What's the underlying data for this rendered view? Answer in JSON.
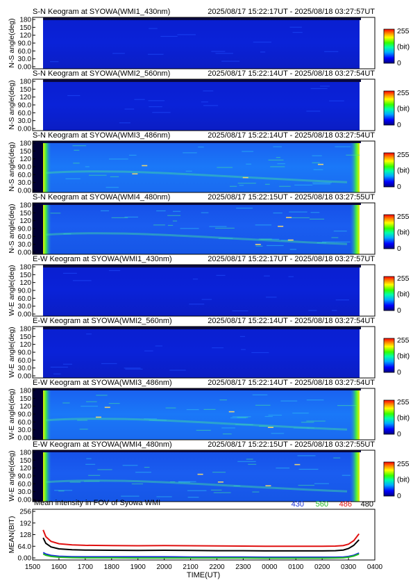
{
  "keograms": [
    {
      "title_left": "S-N Keogram at SYOWA(WMI1_430nm)",
      "title_right": "2025/08/17 15:22:17UT - 2025/08/18 03:27:57UT",
      "ylabel": "N-S angle(deg)",
      "ticks": [
        "180",
        "150",
        "120",
        "90.0",
        "60.0",
        "30.0",
        "0.00"
      ],
      "brightness": "faint",
      "edge": "none",
      "cbar_max": "255",
      "cbar_unit": "(bit)",
      "cbar_min": "0"
    },
    {
      "title_left": "S-N Keogram at SYOWA(WMI2_560nm)",
      "title_right": "2025/08/17 15:22:14UT - 2025/08/18 03:27:54UT",
      "ylabel": "N-S angle(deg)",
      "ticks": [
        "180",
        "150",
        "120",
        "90.0",
        "60.0",
        "30.0",
        "0.00"
      ],
      "brightness": "faint",
      "edge": "none",
      "cbar_max": "255",
      "cbar_unit": "(bit)",
      "cbar_min": "0"
    },
    {
      "title_left": "S-N Keogram at SYOWA(WMI3_486nm)",
      "title_right": "2025/08/17 15:22:14UT - 2025/08/18 03:27:54UT",
      "ylabel": "N-S angle(deg)",
      "ticks": [
        "180",
        "150",
        "120",
        "90.0",
        "60.0",
        "30.0",
        "0.00"
      ],
      "brightness": "bright",
      "edge": "strong",
      "cbar_max": "255",
      "cbar_unit": "(bit)",
      "cbar_min": "0"
    },
    {
      "title_left": "S-N Keogram at SYOWA(WMI4_480nm)",
      "title_right": "2025/08/17 15:22:15UT - 2025/08/18 03:27:55UT",
      "ylabel": "N-S angle(deg)",
      "ticks": [
        "180",
        "150",
        "120",
        "90.0",
        "60.0",
        "30.0",
        "0.00"
      ],
      "brightness": "medium",
      "edge": "strong",
      "cbar_max": "255",
      "cbar_unit": "(bit)",
      "cbar_min": "0"
    },
    {
      "title_left": "E-W Keogram at SYOWA(WMI1_430nm)",
      "title_right": "2025/08/17 15:22:17UT - 2025/08/18 03:27:57UT",
      "ylabel": "W-E angle(deg)",
      "ticks": [
        "180",
        "150",
        "120",
        "90.0",
        "60.0",
        "30.0",
        "0.00"
      ],
      "brightness": "faint",
      "edge": "none",
      "cbar_max": "255",
      "cbar_unit": "(bit)",
      "cbar_min": "0"
    },
    {
      "title_left": "E-W Keogram at SYOWA(WMI2_560nm)",
      "title_right": "2025/08/17 15:22:14UT - 2025/08/18 03:27:54UT",
      "ylabel": "W-E angle(deg)",
      "ticks": [
        "180",
        "150",
        "120",
        "90.0",
        "60.0",
        "30.0",
        "0.00"
      ],
      "brightness": "faint",
      "edge": "none",
      "cbar_max": "255",
      "cbar_unit": "(bit)",
      "cbar_min": "0"
    },
    {
      "title_left": "E-W Keogram at SYOWA(WMI3_486nm)",
      "title_right": "2025/08/17 15:22:14UT - 2025/08/18 03:27:54UT",
      "ylabel": "W-E angle(deg)",
      "ticks": [
        "180",
        "150",
        "120",
        "90.0",
        "60.0",
        "30.0",
        "0.00"
      ],
      "brightness": "bright",
      "edge": "strong",
      "cbar_max": "255",
      "cbar_unit": "(bit)",
      "cbar_min": "0"
    },
    {
      "title_left": "E-W Keogram at SYOWA(WMI4_480nm)",
      "title_right": "2025/08/17 15:22:15UT - 2025/08/18 03:27:55UT",
      "ylabel": "W-E angle(deg)",
      "ticks": [
        "180",
        "150",
        "120",
        "90.0",
        "60.0",
        "30.0",
        "0.00"
      ],
      "brightness": "medium",
      "edge": "strong",
      "cbar_max": "255",
      "cbar_unit": "(bit)",
      "cbar_min": "0"
    }
  ],
  "chart_data": {
    "type": "line",
    "title": "Mean intensity in FOV of Syowa WMI",
    "xlabel": "TIME(UT)",
    "ylabel": "MEAN(BIT)",
    "x_ticks": [
      "1500",
      "1600",
      "1700",
      "1800",
      "1900",
      "2000",
      "2100",
      "2200",
      "2300",
      "0000",
      "0100",
      "0200",
      "0300",
      "0400"
    ],
    "y_ticks": [
      "256",
      "192",
      "128",
      "64.0",
      "0.00"
    ],
    "ylim": [
      0,
      256
    ],
    "xlim": [
      15.0,
      28.0
    ],
    "x": [
      15.4,
      15.5,
      15.7,
      16.0,
      16.5,
      17.0,
      18.0,
      19.0,
      20.0,
      21.0,
      22.0,
      23.0,
      24.0,
      25.0,
      26.0,
      26.5,
      26.8,
      27.0,
      27.2,
      27.4
    ],
    "series": [
      {
        "name": "430",
        "color": "#1a33d9",
        "values": [
          38,
          30,
          23,
          19,
          17,
          16,
          16,
          16,
          16,
          15,
          15,
          15,
          14,
          14,
          14,
          14,
          15,
          18,
          24,
          35
        ]
      },
      {
        "name": "560",
        "color": "#22bb22",
        "values": [
          30,
          24,
          18,
          14,
          12,
          11,
          11,
          10,
          10,
          10,
          10,
          10,
          9,
          9,
          9,
          10,
          11,
          14,
          20,
          30
        ]
      },
      {
        "name": "486",
        "color": "#e01010",
        "values": [
          152,
          118,
          94,
          82,
          76,
          74,
          73,
          72,
          73,
          72,
          71,
          70,
          69,
          69,
          69,
          70,
          73,
          80,
          98,
          132
        ]
      },
      {
        "name": "480",
        "color": "#000000",
        "values": [
          112,
          84,
          66,
          56,
          52,
          50,
          49,
          48,
          49,
          48,
          47,
          47,
          46,
          46,
          46,
          47,
          50,
          58,
          74,
          102
        ]
      }
    ]
  }
}
